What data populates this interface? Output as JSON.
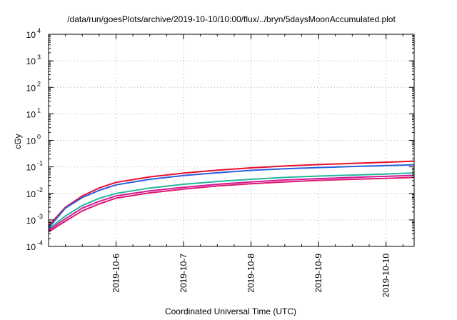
{
  "chart_data": {
    "type": "line",
    "title": "/data/run/goesPlots/archive/2019-10-10/10:00/flux/../bryn/5daysMoonAccumulated.plot",
    "xlabel": "Coordinated Universal Time (UTC)",
    "ylabel": "cGy",
    "yscale": "log",
    "ylim": [
      0.0001,
      10000
    ],
    "xlim": [
      "2019-10-05T00:00",
      "2019-10-10T10:00"
    ],
    "grid": true,
    "x_ticks": [
      "2019-10-6",
      "2019-10-7",
      "2019-10-8",
      "2019-10-9",
      "2019-10-10"
    ],
    "y_ticks": [
      {
        "base": "10",
        "exp": "-4",
        "value": 0.0001
      },
      {
        "base": "10",
        "exp": "-3",
        "value": 0.001
      },
      {
        "base": "10",
        "exp": "-2",
        "value": 0.01
      },
      {
        "base": "10",
        "exp": "-1",
        "value": 0.1
      },
      {
        "base": "10",
        "exp": "0",
        "value": 1
      },
      {
        "base": "10",
        "exp": "1",
        "value": 10
      },
      {
        "base": "10",
        "exp": "2",
        "value": 100
      },
      {
        "base": "10",
        "exp": "3",
        "value": 1000
      },
      {
        "base": "10",
        "exp": "4",
        "value": 10000
      }
    ],
    "x": [
      "2019-10-05T00:00",
      "2019-10-05T06:00",
      "2019-10-05T12:00",
      "2019-10-05T18:00",
      "2019-10-06T00:00",
      "2019-10-06T12:00",
      "2019-10-07T00:00",
      "2019-10-07T12:00",
      "2019-10-08T00:00",
      "2019-10-08T12:00",
      "2019-10-09T00:00",
      "2019-10-09T12:00",
      "2019-10-10T00:00",
      "2019-10-10T10:00"
    ],
    "series": [
      {
        "color": "#e8102a",
        "values": [
          0.0006,
          0.003,
          0.008,
          0.016,
          0.026,
          0.042,
          0.058,
          0.075,
          0.092,
          0.108,
          0.122,
          0.135,
          0.15,
          0.165
        ]
      },
      {
        "color": "#2a5de0",
        "values": [
          0.0005,
          0.0028,
          0.007,
          0.013,
          0.021,
          0.034,
          0.047,
          0.06,
          0.074,
          0.085,
          0.094,
          0.103,
          0.112,
          0.12
        ]
      },
      {
        "color": "#22b89a",
        "values": [
          0.00045,
          0.0014,
          0.0035,
          0.0065,
          0.01,
          0.016,
          0.022,
          0.028,
          0.034,
          0.04,
          0.045,
          0.049,
          0.054,
          0.059
        ]
      },
      {
        "color": "#d11a9e",
        "values": [
          0.0004,
          0.0011,
          0.0028,
          0.005,
          0.008,
          0.0125,
          0.017,
          0.022,
          0.027,
          0.032,
          0.036,
          0.04,
          0.044,
          0.048
        ]
      },
      {
        "color": "#e01b6e",
        "values": [
          0.00035,
          0.0009,
          0.0022,
          0.004,
          0.0066,
          0.0105,
          0.0145,
          0.019,
          0.023,
          0.027,
          0.031,
          0.034,
          0.037,
          0.04
        ]
      }
    ]
  }
}
